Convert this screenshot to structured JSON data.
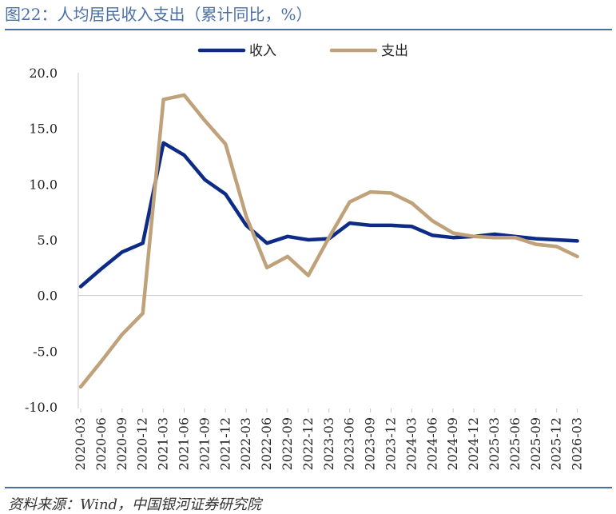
{
  "figure": {
    "title": "图22：人均居民收入支出（累计同比，%）",
    "source": "资料来源：Wind，中国银河证券研究院"
  },
  "colors": {
    "income": "#0d2b86",
    "expense": "#bfa17a",
    "rule": "#4a6fa5",
    "axis": "#c8c8c8"
  },
  "chart_data": {
    "type": "line",
    "title": "图22：人均居民收入支出（累计同比，%）",
    "xlabel": "",
    "ylabel": "",
    "ylim": [
      -10,
      20
    ],
    "yticks": [
      "20.0",
      "15.0",
      "10.0",
      "5.0",
      "0.0",
      "-5.0",
      "-10.0"
    ],
    "ytick_values": [
      20,
      15,
      10,
      5,
      0,
      -5,
      -10
    ],
    "grid": false,
    "legend_position": "top-center",
    "categories": [
      "2020-03",
      "2020-06",
      "2020-09",
      "2020-12",
      "2021-03",
      "2021-06",
      "2021-09",
      "2021-12",
      "2022-03",
      "2022-06",
      "2022-09",
      "2022-12",
      "2023-03",
      "2023-06",
      "2023-09",
      "2023-12",
      "2024-03",
      "2024-06",
      "2024-09",
      "2024-12",
      "2025-03",
      "2025-06",
      "2025-09",
      "2025-12",
      "2026-03"
    ],
    "series": [
      {
        "name": "收入",
        "values": [
          0.8,
          2.4,
          3.9,
          4.7,
          13.7,
          12.6,
          10.4,
          9.1,
          6.3,
          4.7,
          5.3,
          5.0,
          5.1,
          6.5,
          6.3,
          6.3,
          6.2,
          5.4,
          5.2,
          5.3,
          5.5,
          5.3,
          5.1,
          5.0,
          4.9
        ]
      },
      {
        "name": "支出",
        "values": [
          -8.2,
          -5.9,
          -3.5,
          -1.6,
          17.6,
          18.0,
          15.7,
          13.6,
          7.1,
          2.5,
          3.5,
          1.8,
          5.2,
          8.4,
          9.3,
          9.2,
          8.3,
          6.7,
          5.6,
          5.3,
          5.2,
          5.2,
          4.6,
          4.4,
          3.5
        ]
      }
    ]
  }
}
